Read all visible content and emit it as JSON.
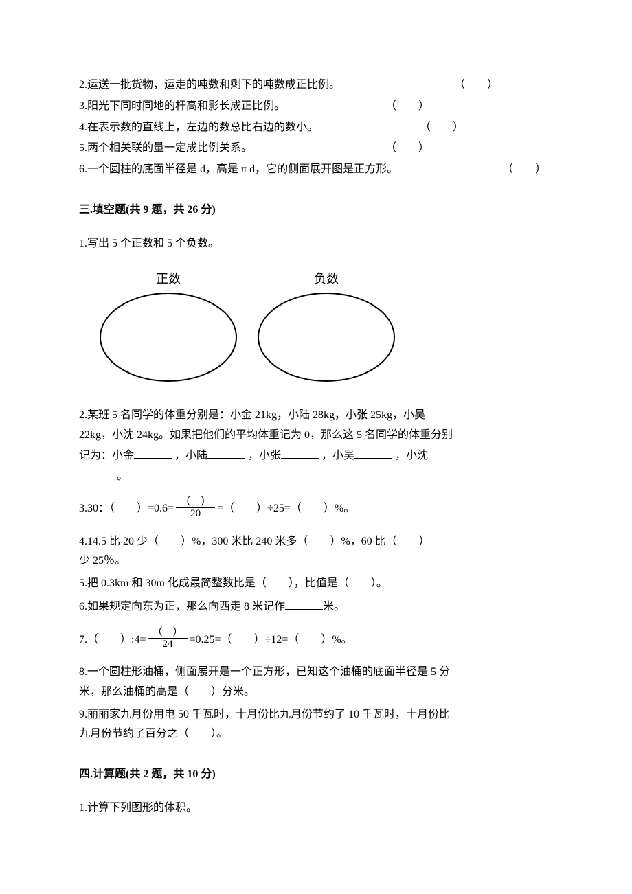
{
  "judge": {
    "q2": "2.运送一批货物，运走的吨数和剩下的吨数成正比例。",
    "q3": "3.阳光下同时同地的杆高和影长成正比例。",
    "q4": "4.在表示数的直线上，左边的数总比右边的数小。",
    "q5": "5.两个相关联的量一定成比例关系。",
    "q6": "6.一个圆柱的底面半径是 d，高是 π d，它的侧面展开图是正方形。",
    "paren": "（　　）"
  },
  "section3": {
    "header": "三.填空题(共 9 题，共 26 分)"
  },
  "fill": {
    "q1": "1.写出 5 个正数和 5 个负数。",
    "label_pos": "正数",
    "label_neg": "负数",
    "q2a": "2.某班 5 名同学的体重分别是：小金 21kg，小陆 28kg，小张 25kg，小吴",
    "q2b": "22kg，小沈 24kg。如果把他们的平均体重记为 0，那么这 5 名同学的体重分别",
    "q2c_1": "记为：小金",
    "q2c_2": "，小陆",
    "q2c_3": "，小张",
    "q2c_4": "，小吴",
    "q2c_5": "，小沈",
    "q2d": "。",
    "q3_1": "3.30：（　　）=0.6=",
    "q3_frac_num": "（　）",
    "q3_frac_den": "20",
    "q3_2": "=（　　）÷25=（　　）%。",
    "q4a": "4.14.5 比 20 少（　　）%，300 米比 240 米多（　　）%，60 比（　　）",
    "q4b": "少 25％。",
    "q5": "5.把 0.3km 和 30m 化成最简整数比是（　　），比值是（　　）。",
    "q6_1": "6.如果规定向东为正，那么向西走 8 米记作",
    "q6_2": "米。",
    "q7_1": "7.（　　）:4=",
    "q7_frac_num": "（　）",
    "q7_frac_den": "24",
    "q7_2": "=0.25=（　　）÷12=（　　）%。",
    "q8a": "8.一个圆柱形油桶，侧面展开是一个正方形，已知这个油桶的底面半径是 5 分",
    "q8b": "米，那么油桶的高是（　　）分米。",
    "q9a": "9.丽丽家九月份用电 50 千瓦时，十月份比九月份节约了 10 千瓦时，十月份比",
    "q9b": "九月份节约了百分之（　　）。"
  },
  "section4": {
    "header": "四.计算题(共 2 题，共 10 分)"
  },
  "calc": {
    "q1": "1.计算下列图形的体积。"
  }
}
